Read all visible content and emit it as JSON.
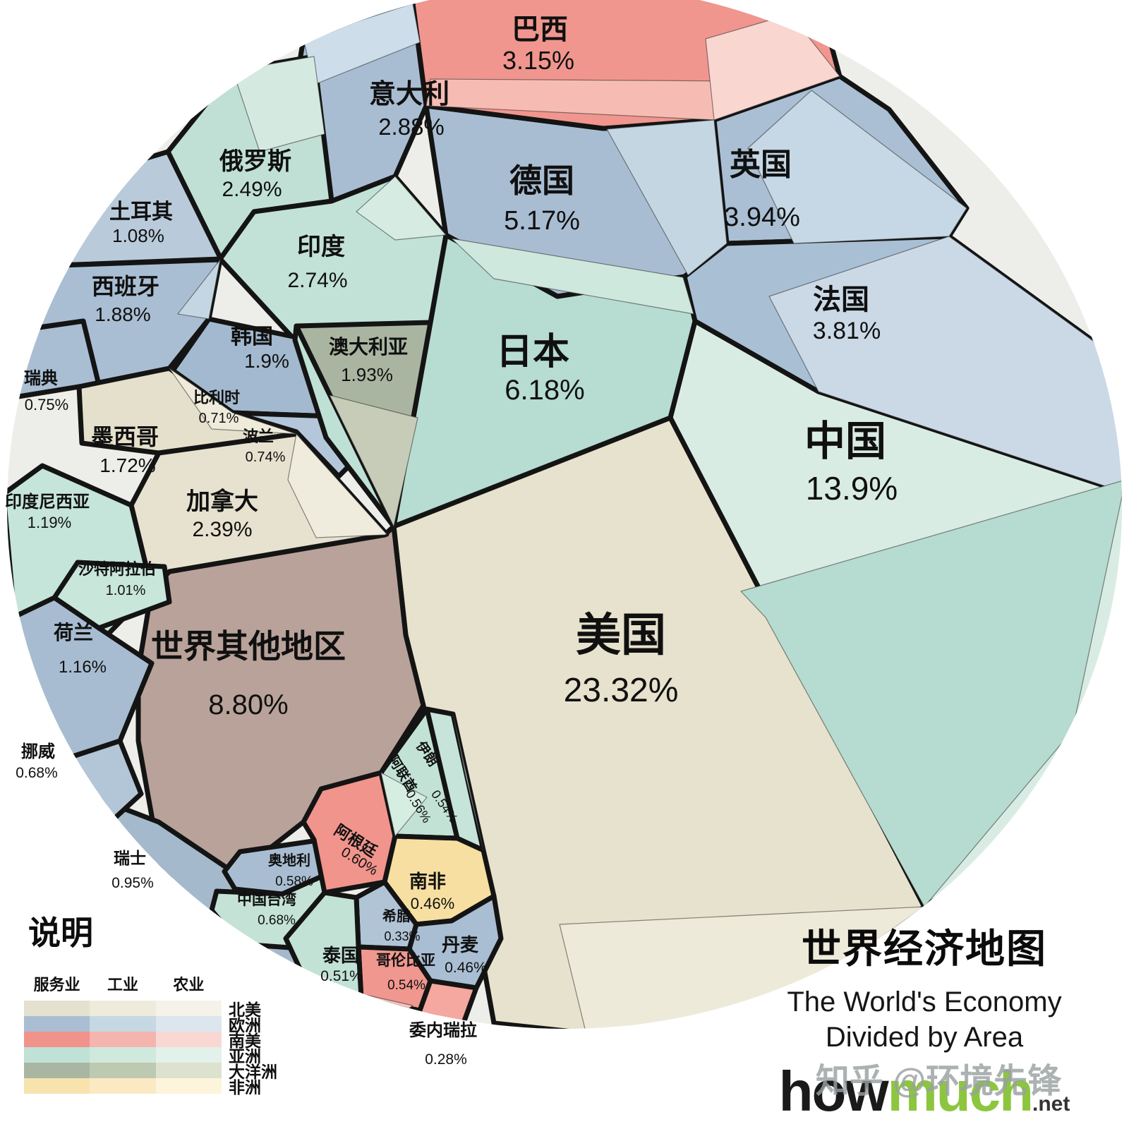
{
  "title": {
    "zh": "世界经济地图",
    "en_line1": "The World's Economy",
    "en_line2": "Divided by Area"
  },
  "logo": {
    "part1": "how",
    "part2": "much",
    "part3": ".net"
  },
  "watermark": "知乎 @环境先锋",
  "legend": {
    "title": "说明",
    "columns": [
      "服务业",
      "工业",
      "农业"
    ],
    "rows": [
      {
        "label": "北美",
        "colors": [
          "#e5e1cf",
          "#eeebdc",
          "#f5f3e9"
        ]
      },
      {
        "label": "欧洲",
        "colors": [
          "#a9bed2",
          "#c6d8e4",
          "#dbe6ee"
        ]
      },
      {
        "label": "南美",
        "colors": [
          "#f0938b",
          "#f5b5ae",
          "#f9d8d3"
        ]
      },
      {
        "label": "亚洲",
        "colors": [
          "#c0e1d6",
          "#cfe9dd",
          "#e2f1e9"
        ]
      },
      {
        "label": "大洋洲",
        "colors": [
          "#a9b6a2",
          "#bec9b2",
          "#dde2cf"
        ]
      },
      {
        "label": "非洲",
        "colors": [
          "#f8e2ae",
          "#fae9c2",
          "#fdf4dc"
        ]
      }
    ]
  },
  "chart_data": {
    "type": "pie",
    "variant": "voronoi-treemap-circle",
    "title": "世界经济地图 / The World's Economy Divided by Area",
    "units": "share of world economy (%)",
    "items": [
      {
        "id": "usa",
        "name": "美国",
        "pct": "23.32%",
        "value": 23.32,
        "continent": "北美",
        "color": "#e7e2cd"
      },
      {
        "id": "china",
        "name": "中国",
        "pct": "13.9%",
        "value": 13.9,
        "continent": "亚洲",
        "color": "#d9ece3"
      },
      {
        "id": "row",
        "name": "世界其他地区",
        "pct": "8.80%",
        "value": 8.8,
        "continent": "其他",
        "color": "#b8a29a"
      },
      {
        "id": "japan",
        "name": "日本",
        "pct": "6.18%",
        "value": 6.18,
        "continent": "亚洲",
        "color": "#b7dcd2"
      },
      {
        "id": "germany",
        "name": "德国",
        "pct": "5.17%",
        "value": 5.17,
        "continent": "欧洲",
        "color": "#a9bdd2"
      },
      {
        "id": "uk",
        "name": "英国",
        "pct": "3.94%",
        "value": 3.94,
        "continent": "欧洲",
        "color": "#aabfd4"
      },
      {
        "id": "france",
        "name": "法国",
        "pct": "3.81%",
        "value": 3.81,
        "continent": "欧洲",
        "color": "#a9bfd4"
      },
      {
        "id": "brazil",
        "name": "巴西",
        "pct": "3.15%",
        "value": 3.15,
        "continent": "南美",
        "color": "#f0968e"
      },
      {
        "id": "italy",
        "name": "意大利",
        "pct": "2.88%",
        "value": 2.88,
        "continent": "欧洲",
        "color": "#a9bdd2"
      },
      {
        "id": "india",
        "name": "印度",
        "pct": "2.74%",
        "value": 2.74,
        "continent": "亚洲",
        "color": "#c2e2d7"
      },
      {
        "id": "russia",
        "name": "俄罗斯",
        "pct": "2.49%",
        "value": 2.49,
        "continent": "亚洲",
        "color": "#c0e0d6"
      },
      {
        "id": "canada",
        "name": "加拿大",
        "pct": "2.39%",
        "value": 2.39,
        "continent": "北美",
        "color": "#e7e2cf"
      },
      {
        "id": "australia",
        "name": "澳大利亚",
        "pct": "1.93%",
        "value": 1.93,
        "continent": "大洋洲",
        "color": "#a9b5a0"
      },
      {
        "id": "korea",
        "name": "韩国",
        "pct": "1.9%",
        "value": 1.9,
        "continent": "亚洲",
        "color": "#bfe0d5"
      },
      {
        "id": "spain",
        "name": "西班牙",
        "pct": "1.88%",
        "value": 1.88,
        "continent": "欧洲",
        "color": "#a9bed3"
      },
      {
        "id": "mexico",
        "name": "墨西哥",
        "pct": "1.72%",
        "value": 1.72,
        "continent": "北美",
        "color": "#e5e0cc"
      },
      {
        "id": "indonesia",
        "name": "印度尼西亚",
        "pct": "1.19%",
        "value": 1.19,
        "continent": "亚洲",
        "color": "#c5e4da"
      },
      {
        "id": "netherlands",
        "name": "荷兰",
        "pct": "1.16%",
        "value": 1.16,
        "continent": "欧洲",
        "color": "#a7bcd0"
      },
      {
        "id": "turkey",
        "name": "土耳其",
        "pct": "1.08%",
        "value": 1.08,
        "continent": "欧洲",
        "color": "#b9cada"
      },
      {
        "id": "saudi",
        "name": "沙特阿拉伯",
        "pct": "1.01%",
        "value": 1.01,
        "continent": "亚洲",
        "color": "#c9e6db"
      },
      {
        "id": "switzerland",
        "name": "瑞士",
        "pct": "0.95%",
        "value": 0.95,
        "continent": "欧洲",
        "color": "#a5b9cc"
      },
      {
        "id": "sweden",
        "name": "瑞典",
        "pct": "0.75%",
        "value": 0.75,
        "continent": "欧洲",
        "color": "#a9bed3"
      },
      {
        "id": "poland",
        "name": "波兰",
        "pct": "0.74%",
        "value": 0.74,
        "continent": "欧洲",
        "color": "#b4c7da"
      },
      {
        "id": "belgium",
        "name": "比利时",
        "pct": "0.71%",
        "value": 0.71,
        "continent": "欧洲",
        "color": "#a3b9cf"
      },
      {
        "id": "norway",
        "name": "挪威",
        "pct": "0.68%",
        "value": 0.68,
        "continent": "欧洲",
        "color": "#b3c6d8"
      },
      {
        "id": "taiwan",
        "name": "中国台湾",
        "pct": "0.68%",
        "value": 0.68,
        "continent": "亚洲",
        "color": "#c4e3d6"
      },
      {
        "id": "argentina",
        "name": "阿根廷",
        "pct": "0.60%",
        "value": 0.6,
        "continent": "南美",
        "color": "#f0948c"
      },
      {
        "id": "austria",
        "name": "奥地利",
        "pct": "0.58%",
        "value": 0.58,
        "continent": "欧洲",
        "color": "#a8bdd1"
      },
      {
        "id": "uae",
        "name": "阿联酋",
        "pct": "0.56%",
        "value": 0.56,
        "continent": "亚洲",
        "color": "#c2e2d6"
      },
      {
        "id": "iran",
        "name": "伊朗",
        "pct": "0.54%",
        "value": 0.54,
        "continent": "亚洲",
        "color": "#c6e4d9"
      },
      {
        "id": "colombia",
        "name": "哥伦比亚",
        "pct": "0.54%",
        "value": 0.54,
        "continent": "南美",
        "color": "#f0978f"
      },
      {
        "id": "thailand",
        "name": "泰国",
        "pct": "0.51%",
        "value": 0.51,
        "continent": "亚洲",
        "color": "#c2e2d6"
      },
      {
        "id": "southafrica",
        "name": "南非",
        "pct": "0.46%",
        "value": 0.46,
        "continent": "非洲",
        "color": "#f7dfa2"
      },
      {
        "id": "denmark",
        "name": "丹麦",
        "pct": "0.46%",
        "value": 0.46,
        "continent": "欧洲",
        "color": "#a9bed2"
      },
      {
        "id": "greece",
        "name": "希腊",
        "pct": "0.33%",
        "value": 0.33,
        "continent": "欧洲",
        "color": "#b0c4d6"
      },
      {
        "id": "venezuela",
        "name": "委内瑞拉",
        "pct": "0.28%",
        "value": 0.28,
        "continent": "南美",
        "color": "#f4a8a0"
      }
    ]
  }
}
